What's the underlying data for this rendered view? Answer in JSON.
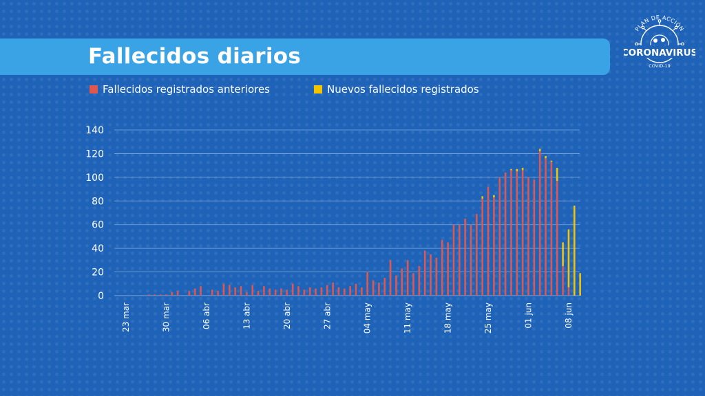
{
  "header": {
    "title": "Fallecidos diarios"
  },
  "logo": {
    "line1": "PLAN DE ACCIÓN",
    "line2": "CORONAVIRUS",
    "line3": "COVID-19",
    "icon": "coronavirus-icon"
  },
  "colors": {
    "background": "#1f63b8",
    "title_bar": "#3aa3e6",
    "previous": "#e0574f",
    "new": "#f5c400",
    "gridline": "#7fa9dc"
  },
  "chart_data": {
    "type": "bar",
    "stacked": true,
    "title": "",
    "xlabel": "",
    "ylabel": "",
    "ylim": [
      0,
      140
    ],
    "yticks": [
      0,
      20,
      40,
      60,
      80,
      100,
      120,
      140
    ],
    "grid": true,
    "legend_position": "top",
    "date_start": "23 mar",
    "x_tick_labels": [
      "23 mar",
      "30 mar",
      "06 abr",
      "13 abr",
      "20 abr",
      "27 abr",
      "04 may",
      "11 may",
      "18 may",
      "25 may",
      "01 jun",
      "08 jun"
    ],
    "series": [
      {
        "name": "Fallecidos registrados anteriores",
        "color": "#e0574f",
        "values": [
          0,
          0,
          0,
          0,
          1,
          1,
          1,
          1,
          3,
          4,
          0,
          4,
          6,
          8,
          0,
          5,
          4,
          10,
          9,
          7,
          8,
          3,
          9,
          4,
          8,
          6,
          5,
          6,
          5,
          10,
          8,
          5,
          7,
          6,
          7,
          9,
          11,
          7,
          6,
          8,
          10,
          7,
          20,
          13,
          11,
          15,
          30,
          17,
          23,
          30,
          19,
          25,
          38,
          35,
          32,
          47,
          45,
          60,
          60,
          65,
          60,
          69,
          82,
          92,
          83,
          100,
          104,
          106,
          105,
          106,
          100,
          98,
          122,
          116,
          113,
          97,
          25,
          7,
          0,
          0
        ]
      },
      {
        "name": "Nuevos fallecidos registrados",
        "color": "#f5c400",
        "values": [
          0,
          0,
          0,
          0,
          0,
          0,
          0,
          0,
          0,
          0,
          0,
          0,
          0,
          0,
          0,
          0,
          0,
          0,
          0,
          0,
          0,
          0,
          0,
          0,
          0,
          0,
          0,
          0,
          0,
          0,
          0,
          0,
          0,
          0,
          0,
          0,
          0,
          0,
          0,
          0,
          0,
          0,
          0,
          0,
          0,
          0,
          0,
          0,
          0,
          0,
          0,
          0,
          0,
          0,
          0,
          0,
          0,
          0,
          0,
          0,
          0,
          0,
          2,
          0,
          2,
          0,
          0,
          1,
          2,
          2,
          0,
          0,
          2,
          2,
          1,
          11,
          20,
          49,
          76,
          19
        ]
      }
    ]
  }
}
